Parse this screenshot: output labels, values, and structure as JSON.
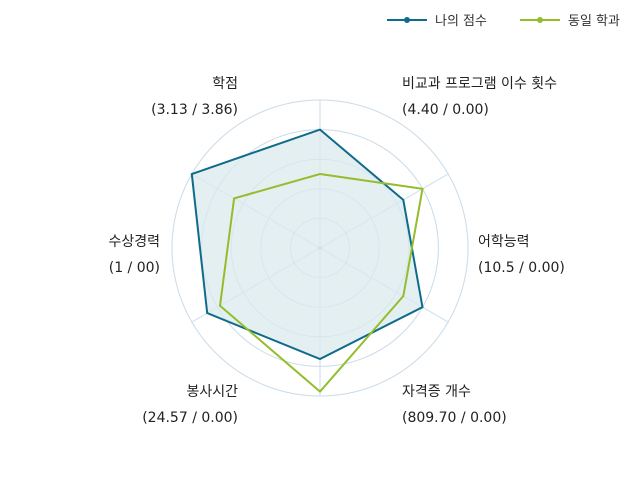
{
  "chart_data": {
    "type": "radar",
    "legend_position": "top-right",
    "legend": [
      {
        "name": "나의 점수",
        "color": "#0e6b8a"
      },
      {
        "name": "동일 학과",
        "color": "#93bd2a"
      }
    ],
    "axes": [
      {
        "name": "학점",
        "value_text": "(3.13 / 3.86)"
      },
      {
        "name": "비교과 프로그램 이수 횟수",
        "value_text": "(4.40 / 0.00)"
      },
      {
        "name": "어학능력",
        "value_text": "(10.5 / 0.00)"
      },
      {
        "name": "자격증 개수",
        "value_text": "(809.70 / 0.00)"
      },
      {
        "name": "봉사시간",
        "value_text": "(24.57 / 0.00)"
      },
      {
        "name": "수상경력",
        "value_text": "(1 / 00)"
      }
    ],
    "grid_levels": 5,
    "series": [
      {
        "name": "나의 점수",
        "color": "#0e6b8a",
        "fill": "#dbeaee",
        "values": [
          0.8,
          0.65,
          0.8,
          0.75,
          0.88,
          1.0
        ]
      },
      {
        "name": "동일 학과",
        "color": "#93bd2a",
        "values": [
          0.5,
          0.8,
          0.65,
          0.97,
          0.78,
          0.67
        ]
      }
    ]
  }
}
